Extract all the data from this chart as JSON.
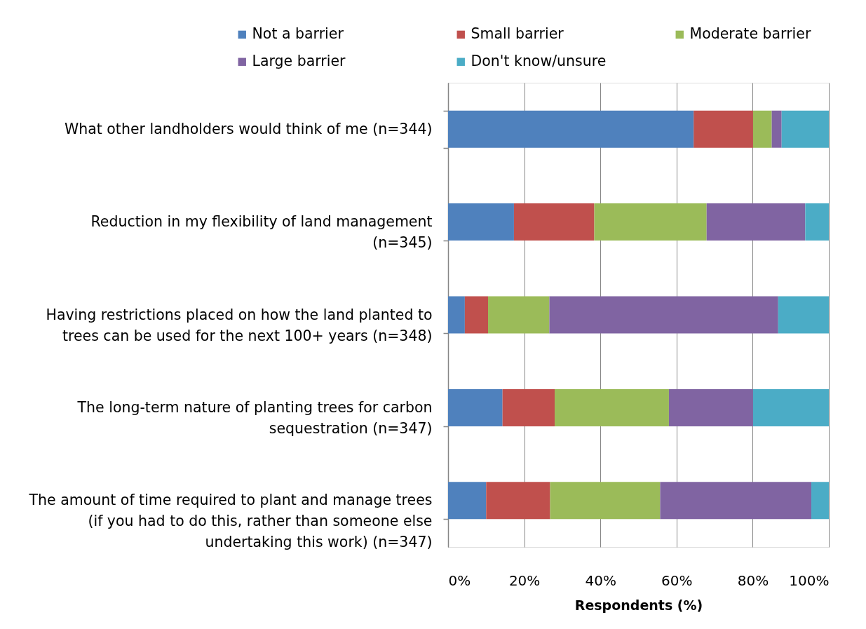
{
  "chart_data": {
    "type": "bar",
    "orientation": "horizontal",
    "stacked": true,
    "categories": [
      "What other landholders would think of me (n=344)",
      "Reduction in my flexibility of land management (n=345)",
      "Having restrictions placed on how the land planted to trees can be used for the next 100+ years (n=348)",
      "The long-term nature of planting trees for carbon sequestration (n=347)",
      "The amount of time required to plant and manage trees (if you had to do this, rather than someone else undertaking this work) (n=347)"
    ],
    "series": [
      {
        "name": "Not a barrier",
        "color": "#4f81bd",
        "values": [
          64.5,
          17.3,
          4.4,
          14.3,
          10.0
        ]
      },
      {
        "name": "Small barrier",
        "color": "#c0504d",
        "values": [
          15.6,
          21.1,
          6.1,
          13.7,
          16.8
        ]
      },
      {
        "name": "Moderate barrier",
        "color": "#9bbb59",
        "values": [
          4.9,
          29.5,
          16.1,
          30.0,
          28.9
        ]
      },
      {
        "name": "Large barrier",
        "color": "#8064a2",
        "values": [
          2.6,
          25.9,
          60.1,
          22.1,
          39.7
        ]
      },
      {
        "name": "Don't know/unsure",
        "color": "#4bacc6",
        "values": [
          12.4,
          6.2,
          13.3,
          19.9,
          4.6
        ]
      }
    ],
    "xlim": [
      0,
      100
    ],
    "xticks": [
      {
        "value": 0,
        "label": "0%"
      },
      {
        "value": 20,
        "label": "20%"
      },
      {
        "value": 40,
        "label": "40%"
      },
      {
        "value": 60,
        "label": "60%"
      },
      {
        "value": 80,
        "label": "80%"
      },
      {
        "value": 100,
        "label": "100%"
      }
    ],
    "xlabel": "Respondents (%)",
    "grid": "x",
    "legend": "top"
  }
}
